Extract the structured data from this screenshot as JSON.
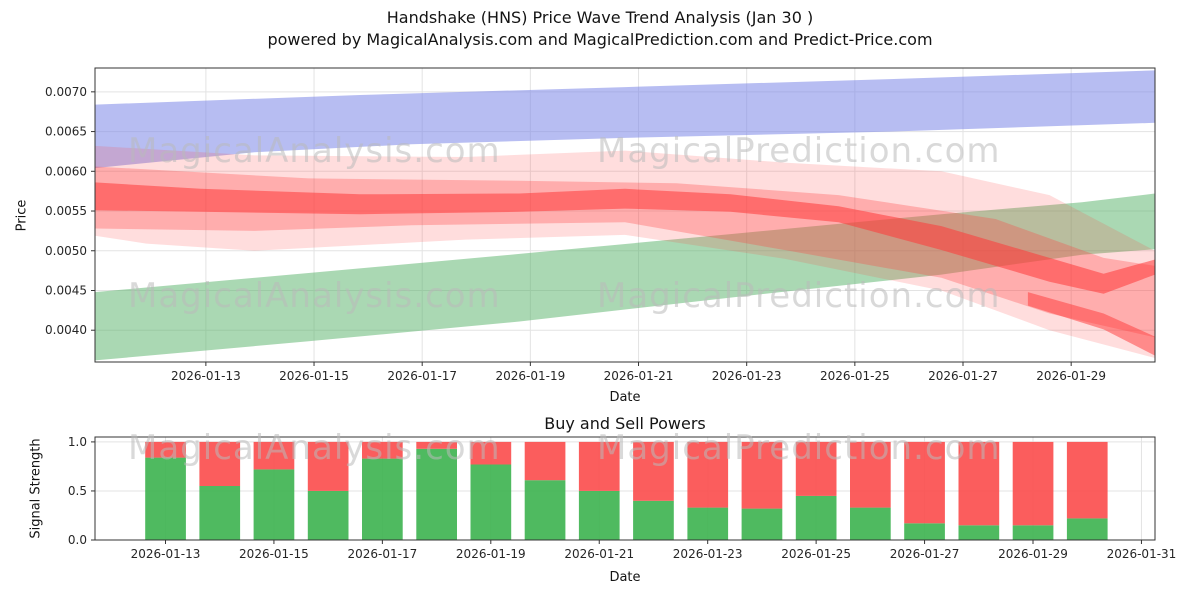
{
  "title": "Handshake (HNS) Price Wave Trend Analysis (Jan 30 )",
  "subtitle": "powered by MagicalAnalysis.com and MagicalPrediction.com and Predict-Price.com",
  "watermarks": {
    "left": "MagicalAnalysis.com",
    "right": "MagicalPrediction.com"
  },
  "chart_data": [
    {
      "type": "area",
      "title": "",
      "xlabel": "Date",
      "ylabel": "Price",
      "xlim": [
        10.95,
        30.55
      ],
      "ylim": [
        0.0036,
        0.0073
      ],
      "grid": true,
      "legend": "none",
      "x_ticks": [
        {
          "pos": 13,
          "label": "2026-01-13"
        },
        {
          "pos": 15,
          "label": "2026-01-15"
        },
        {
          "pos": 17,
          "label": "2026-01-17"
        },
        {
          "pos": 19,
          "label": "2026-01-19"
        },
        {
          "pos": 21,
          "label": "2026-01-21"
        },
        {
          "pos": 23,
          "label": "2026-01-23"
        },
        {
          "pos": 25,
          "label": "2026-01-25"
        },
        {
          "pos": 27,
          "label": "2026-01-27"
        },
        {
          "pos": 29,
          "label": "2026-01-29"
        }
      ],
      "y_ticks": [
        {
          "pos": 0.004,
          "label": "0.0040"
        },
        {
          "pos": 0.0045,
          "label": "0.0045"
        },
        {
          "pos": 0.005,
          "label": "0.0050"
        },
        {
          "pos": 0.0055,
          "label": "0.0055"
        },
        {
          "pos": 0.006,
          "label": "0.0060"
        },
        {
          "pos": 0.0065,
          "label": "0.0065"
        },
        {
          "pos": 0.007,
          "label": "0.0070"
        }
      ],
      "bands": [
        {
          "name": "lower-green-trend-band",
          "color": "#55b167",
          "opacity": 0.5,
          "points": [
            [
              10.95,
              0.00448
            ],
            [
              14.9,
              0.00472
            ],
            [
              18.8,
              0.00496
            ],
            [
              22.7,
              0.00521
            ],
            [
              26.6,
              0.00546
            ],
            [
              29.2,
              0.00561
            ],
            [
              30.55,
              0.00572
            ],
            [
              30.55,
              0.00502
            ],
            [
              29.2,
              0.00495
            ],
            [
              26.6,
              0.0047
            ],
            [
              22.7,
              0.00441
            ],
            [
              18.8,
              0.00411
            ],
            [
              14.9,
              0.00386
            ],
            [
              10.95,
              0.00362
            ]
          ]
        },
        {
          "name": "upper-blue-trend-band",
          "color": "#7b86e8",
          "opacity": 0.55,
          "points": [
            [
              10.95,
              0.00684
            ],
            [
              15.85,
              0.00696
            ],
            [
              20.75,
              0.00706
            ],
            [
              25.65,
              0.00716
            ],
            [
              30.55,
              0.00727
            ],
            [
              30.55,
              0.00661
            ],
            [
              25.65,
              0.0065
            ],
            [
              20.75,
              0.00642
            ],
            [
              16.8,
              0.00634
            ],
            [
              13.9,
              0.00624
            ],
            [
              10.95,
              0.00604
            ]
          ]
        },
        {
          "name": "red-wave-outer-band",
          "color": "#ff4040",
          "opacity": 0.18,
          "points": [
            [
              10.95,
              0.00632
            ],
            [
              13.9,
              0.0062
            ],
            [
              17.8,
              0.00618
            ],
            [
              20.75,
              0.00626
            ],
            [
              23.7,
              0.00611
            ],
            [
              26.6,
              0.006
            ],
            [
              28.6,
              0.0057
            ],
            [
              30.55,
              0.005
            ],
            [
              30.55,
              0.00365
            ],
            [
              28.6,
              0.004
            ],
            [
              26.6,
              0.0045
            ],
            [
              23.7,
              0.0049
            ],
            [
              20.75,
              0.0052
            ],
            [
              17.8,
              0.00514
            ],
            [
              13.9,
              0.005
            ],
            [
              11.9,
              0.00509
            ],
            [
              10.95,
              0.00519
            ]
          ]
        },
        {
          "name": "red-wave-mid-band",
          "color": "#ff4040",
          "opacity": 0.3,
          "points": [
            [
              10.95,
              0.00606
            ],
            [
              14.9,
              0.00591
            ],
            [
              18.8,
              0.00588
            ],
            [
              21.7,
              0.00585
            ],
            [
              24.7,
              0.0057
            ],
            [
              27.6,
              0.0054
            ],
            [
              29.6,
              0.00491
            ],
            [
              30.55,
              0.00481
            ],
            [
              30.55,
              0.00391
            ],
            [
              28.6,
              0.00421
            ],
            [
              26.6,
              0.00466
            ],
            [
              23.7,
              0.00501
            ],
            [
              20.75,
              0.00536
            ],
            [
              16.8,
              0.00532
            ],
            [
              13.9,
              0.00525
            ],
            [
              10.95,
              0.00528
            ]
          ]
        },
        {
          "name": "red-wave-core-band",
          "color": "#ff3838",
          "opacity": 0.55,
          "points": [
            [
              10.95,
              0.00586
            ],
            [
              12.9,
              0.00578
            ],
            [
              15.85,
              0.00571
            ],
            [
              18.8,
              0.00572
            ],
            [
              20.75,
              0.00578
            ],
            [
              22.7,
              0.00571
            ],
            [
              24.7,
              0.00556
            ],
            [
              26.6,
              0.00531
            ],
            [
              28.6,
              0.00491
            ],
            [
              29.6,
              0.00471
            ],
            [
              30.55,
              0.00489
            ],
            [
              30.55,
              0.0047
            ],
            [
              29.6,
              0.00446
            ],
            [
              28.6,
              0.00461
            ],
            [
              26.6,
              0.00501
            ],
            [
              24.7,
              0.00536
            ],
            [
              22.7,
              0.00549
            ],
            [
              20.75,
              0.00553
            ],
            [
              18.8,
              0.00549
            ],
            [
              15.85,
              0.00546
            ],
            [
              12.9,
              0.00549
            ],
            [
              10.95,
              0.00551
            ]
          ]
        },
        {
          "name": "red-wave-tail-band",
          "color": "#ff3838",
          "opacity": 0.5,
          "points": [
            [
              28.2,
              0.00448
            ],
            [
              29.6,
              0.00421
            ],
            [
              30.55,
              0.00392
            ],
            [
              30.55,
              0.00368
            ],
            [
              29.6,
              0.00401
            ],
            [
              28.2,
              0.00431
            ]
          ]
        }
      ]
    },
    {
      "type": "bar",
      "title": "Buy and Sell Powers",
      "xlabel": "Date",
      "ylabel": "Signal Strength",
      "xlim": [
        11.7,
        31.25
      ],
      "ylim": [
        0,
        1.05
      ],
      "grid": true,
      "bar_width": 0.75,
      "x_ticks": [
        {
          "pos": 13,
          "label": "2026-01-13"
        },
        {
          "pos": 15,
          "label": "2026-01-15"
        },
        {
          "pos": 17,
          "label": "2026-01-17"
        },
        {
          "pos": 19,
          "label": "2026-01-19"
        },
        {
          "pos": 21,
          "label": "2026-01-21"
        },
        {
          "pos": 23,
          "label": "2026-01-23"
        },
        {
          "pos": 25,
          "label": "2026-01-25"
        },
        {
          "pos": 27,
          "label": "2026-01-27"
        },
        {
          "pos": 29,
          "label": "2026-01-29"
        },
        {
          "pos": 31,
          "label": "2026-01-31"
        }
      ],
      "y_ticks": [
        {
          "pos": 0.0,
          "label": "0.0"
        },
        {
          "pos": 0.5,
          "label": "0.5"
        },
        {
          "pos": 1.0,
          "label": "1.0"
        }
      ],
      "categories": [
        "2026-01-13",
        "2026-01-14",
        "2026-01-15",
        "2026-01-16",
        "2026-01-17",
        "2026-01-18",
        "2026-01-19",
        "2026-01-20",
        "2026-01-21",
        "2026-01-22",
        "2026-01-23",
        "2026-01-24",
        "2026-01-25",
        "2026-01-26",
        "2026-01-27",
        "2026-01-28",
        "2026-01-29",
        "2026-01-30"
      ],
      "bar_days": [
        13,
        14,
        15,
        16,
        17,
        18,
        19,
        20,
        21,
        22,
        23,
        24,
        25,
        26,
        27,
        28,
        29,
        30
      ],
      "series": [
        {
          "name": "Buy",
          "color": "#3cb34f",
          "opacity": 0.9,
          "values": [
            0.84,
            0.55,
            0.72,
            0.5,
            0.83,
            0.93,
            0.77,
            0.61,
            0.5,
            0.4,
            0.33,
            0.32,
            0.45,
            0.33,
            0.17,
            0.15,
            0.15,
            0.22
          ]
        },
        {
          "name": "Sell",
          "color": "#fb4b4b",
          "opacity": 0.9,
          "values": [
            0.16,
            0.45,
            0.28,
            0.5,
            0.17,
            0.07,
            0.23,
            0.39,
            0.5,
            0.6,
            0.67,
            0.68,
            0.55,
            0.67,
            0.83,
            0.85,
            0.85,
            0.78
          ]
        }
      ]
    }
  ]
}
